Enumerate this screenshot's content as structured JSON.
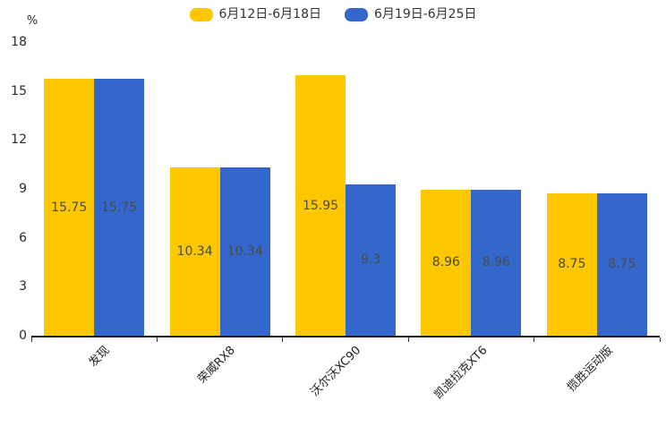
{
  "chart_data": {
    "type": "bar",
    "title": "",
    "categories": [
      "发现",
      "荣威RX8",
      "沃尔沃XC90",
      "凯迪拉克XT6",
      "揽胜运动版"
    ],
    "series": [
      {
        "name": "6月12日-6月18日",
        "color": "#FDC700",
        "values": [
          15.75,
          10.34,
          15.95,
          8.96,
          8.75
        ]
      },
      {
        "name": "6月19日-6月25日",
        "color": "#3367CC",
        "values": [
          15.75,
          10.34,
          9.3,
          8.96,
          8.75
        ]
      }
    ],
    "ylabel": "%",
    "y_ticks": [
      0,
      3,
      6,
      9,
      12,
      15,
      18
    ],
    "ylim": [
      0,
      18
    ],
    "grid": false,
    "legend_position": "top-center",
    "value_labels": "inside-center",
    "colors": {
      "axis_line": "#141414",
      "tick": "#333333",
      "value_label": "#4a4a4a",
      "axis_text": "#2b2b2b"
    }
  }
}
